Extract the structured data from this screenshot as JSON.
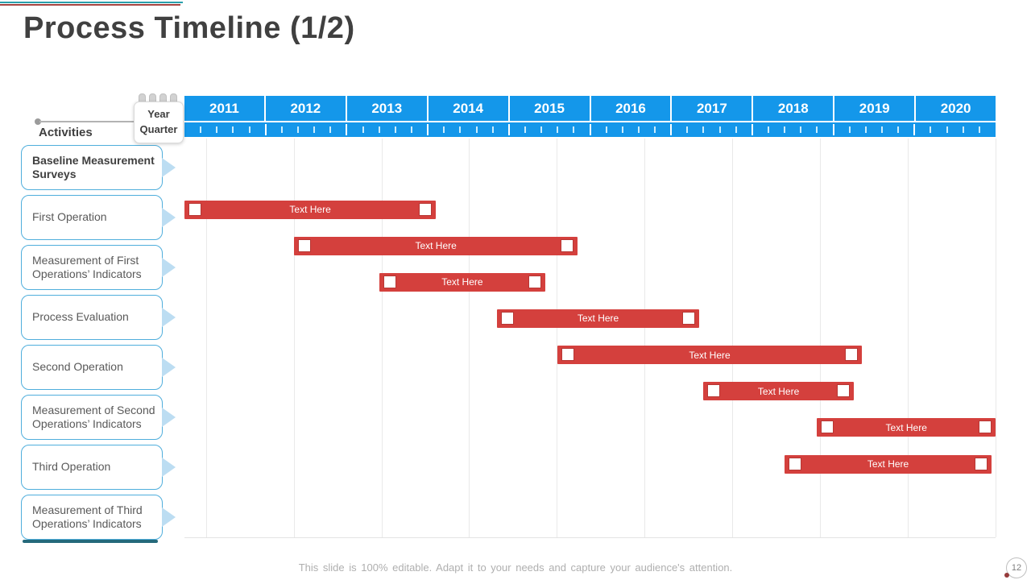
{
  "slide": {
    "title": "Process Timeline (1/2)",
    "footer": "This slide is 100% editable. Adapt it to your needs and capture your audience's attention.",
    "page_number": "12"
  },
  "timeline": {
    "activities_label": "Activities",
    "year_label": "Year",
    "quarter_label": "Quarter"
  },
  "activities": [
    {
      "label": "Baseline Measurement Surveys",
      "emphasis": true
    },
    {
      "label": "First Operation",
      "emphasis": false
    },
    {
      "label": "Measurement of First Operations’ Indicators",
      "emphasis": false
    },
    {
      "label": "Process Evaluation",
      "emphasis": false
    },
    {
      "label": "Second Operation",
      "emphasis": false
    },
    {
      "label": "Measurement of Second Operations’ Indicators",
      "emphasis": false
    },
    {
      "label": "Third Operation",
      "emphasis": false
    },
    {
      "label": "Measurement of Third Operations’ Indicators",
      "emphasis": false
    }
  ],
  "chart_data": {
    "type": "bar",
    "subtype": "gantt-timeline",
    "title": "Process Timeline (1/2)",
    "orientation": "horizontal",
    "x_axis": {
      "unit": "year",
      "minor_unit": "quarter",
      "ticks": [
        "2011",
        "2012",
        "2013",
        "2014",
        "2015",
        "2016",
        "2017",
        "2018",
        "2019",
        "2020"
      ],
      "range": [
        2011,
        2021
      ]
    },
    "rows": [
      "Baseline Measurement Surveys",
      "First Operation",
      "Measurement of First Operations’ Indicators",
      "Process Evaluation",
      "Second Operation",
      "Measurement of Second Operations’ Indicators",
      "Third Operation",
      "Measurement of Third Operations’ Indicators"
    ],
    "bars": [
      {
        "label": "Text Here",
        "start_year": 2011.0,
        "end_year": 2014.1
      },
      {
        "label": "Text Here",
        "start_year": 2012.35,
        "end_year": 2015.85
      },
      {
        "label": "Text Here",
        "start_year": 2013.4,
        "end_year": 2015.45
      },
      {
        "label": "Text Here",
        "start_year": 2014.85,
        "end_year": 2017.35
      },
      {
        "label": "Text Here",
        "start_year": 2015.6,
        "end_year": 2019.35
      },
      {
        "label": "Text Here",
        "start_year": 2017.4,
        "end_year": 2019.25
      },
      {
        "label": "Text Here",
        "start_year": 2018.8,
        "end_year": 2021.0
      },
      {
        "label": "Text Here",
        "start_year": 2018.4,
        "end_year": 2020.95
      }
    ],
    "legend": false,
    "gridlines": "vertical"
  },
  "colors": {
    "header_blue": "#1497EA",
    "bar_red": "#D4403D",
    "box_border_blue": "#4FAEDC",
    "arrow_blue": "#BCDDF2",
    "accent_teal": "#2AA0AC",
    "accent_dark_red": "#A64441",
    "bottom_bar_teal": "#25697B"
  }
}
